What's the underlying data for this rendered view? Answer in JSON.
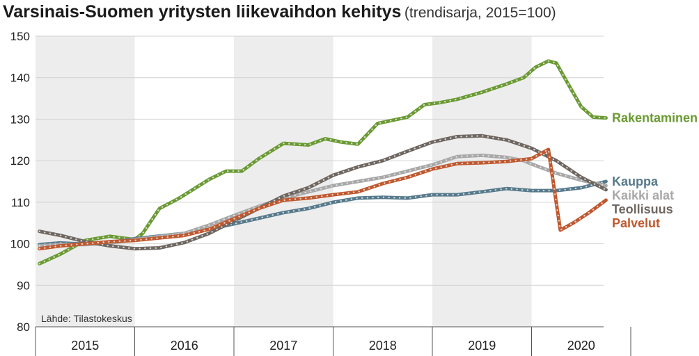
{
  "title": "Varsinais-Suomen yritysten liikevaihdon kehitys",
  "subtitle": "(trendisarja, 2015=100)",
  "source": "Lähde: Tilastokeskus",
  "chart_data": {
    "type": "line",
    "ylim": [
      80,
      150
    ],
    "yticks": [
      80,
      90,
      100,
      110,
      120,
      130,
      140,
      150
    ],
    "xlim": [
      2015.0,
      2020.9
    ],
    "x_axis_labels": [
      "2015",
      "2016",
      "2017",
      "2018",
      "2019",
      "2020"
    ],
    "shaded_years": [
      "2015",
      "2017",
      "2019"
    ],
    "grid": "horizontal",
    "legend": "series labels at the right end of each line",
    "series": [
      {
        "name": "Rakentaminen",
        "color": "#6a9a32",
        "points": [
          [
            2015.04,
            95.2
          ],
          [
            2015.25,
            97.5
          ],
          [
            2015.5,
            100.8
          ],
          [
            2015.75,
            101.8
          ],
          [
            2016.0,
            101.0
          ],
          [
            2016.08,
            102.5
          ],
          [
            2016.25,
            108.5
          ],
          [
            2016.45,
            111.0
          ],
          [
            2016.75,
            115.5
          ],
          [
            2016.92,
            117.5
          ],
          [
            2017.08,
            117.5
          ],
          [
            2017.25,
            120.5
          ],
          [
            2017.5,
            124.2
          ],
          [
            2017.75,
            123.8
          ],
          [
            2017.92,
            125.3
          ],
          [
            2018.08,
            124.5
          ],
          [
            2018.25,
            124.0
          ],
          [
            2018.45,
            129.0
          ],
          [
            2018.75,
            130.5
          ],
          [
            2018.92,
            133.5
          ],
          [
            2019.08,
            134.0
          ],
          [
            2019.25,
            134.8
          ],
          [
            2019.5,
            136.5
          ],
          [
            2019.75,
            138.5
          ],
          [
            2019.92,
            140.0
          ],
          [
            2020.04,
            142.5
          ],
          [
            2020.17,
            144.0
          ],
          [
            2020.25,
            143.5
          ],
          [
            2020.38,
            138.0
          ],
          [
            2020.5,
            133.0
          ],
          [
            2020.62,
            130.5
          ],
          [
            2020.75,
            130.3
          ]
        ]
      },
      {
        "name": "Kauppa",
        "color": "#567a8c",
        "points": [
          [
            2015.04,
            99.8
          ],
          [
            2015.25,
            100.2
          ],
          [
            2015.5,
            99.9
          ],
          [
            2015.75,
            100.3
          ],
          [
            2016.0,
            101.2
          ],
          [
            2016.5,
            102.5
          ],
          [
            2016.75,
            103.5
          ],
          [
            2017.0,
            104.8
          ],
          [
            2017.5,
            107.5
          ],
          [
            2017.75,
            108.5
          ],
          [
            2018.0,
            110.0
          ],
          [
            2018.25,
            111.0
          ],
          [
            2018.5,
            111.2
          ],
          [
            2018.75,
            111.0
          ],
          [
            2019.0,
            111.8
          ],
          [
            2019.25,
            111.8
          ],
          [
            2019.5,
            112.5
          ],
          [
            2019.75,
            113.3
          ],
          [
            2020.0,
            112.8
          ],
          [
            2020.25,
            112.8
          ],
          [
            2020.5,
            113.5
          ],
          [
            2020.75,
            115.0
          ]
        ]
      },
      {
        "name": "Kaikki alat",
        "color": "#a8a8a8",
        "points": [
          [
            2015.04,
            99.5
          ],
          [
            2015.25,
            99.8
          ],
          [
            2015.5,
            99.8
          ],
          [
            2015.75,
            100.2
          ],
          [
            2016.0,
            101.0
          ],
          [
            2016.5,
            102.5
          ],
          [
            2016.75,
            104.5
          ],
          [
            2017.0,
            106.8
          ],
          [
            2017.25,
            109.0
          ],
          [
            2017.5,
            111.0
          ],
          [
            2017.75,
            112.5
          ],
          [
            2018.0,
            114.0
          ],
          [
            2018.25,
            115.0
          ],
          [
            2018.5,
            116.0
          ],
          [
            2018.75,
            117.5
          ],
          [
            2019.0,
            119.0
          ],
          [
            2019.25,
            121.0
          ],
          [
            2019.5,
            121.3
          ],
          [
            2019.75,
            120.8
          ],
          [
            2019.92,
            120.0
          ],
          [
            2020.0,
            119.2
          ],
          [
            2020.25,
            117.0
          ],
          [
            2020.5,
            115.3
          ],
          [
            2020.75,
            114.0
          ]
        ]
      },
      {
        "name": "Teollisuus",
        "color": "#6e6660",
        "points": [
          [
            2015.04,
            103.0
          ],
          [
            2015.25,
            102.0
          ],
          [
            2015.5,
            100.5
          ],
          [
            2015.75,
            99.5
          ],
          [
            2016.0,
            98.8
          ],
          [
            2016.25,
            99.0
          ],
          [
            2016.5,
            100.3
          ],
          [
            2016.75,
            102.5
          ],
          [
            2017.0,
            105.5
          ],
          [
            2017.25,
            108.5
          ],
          [
            2017.5,
            111.5
          ],
          [
            2017.75,
            113.5
          ],
          [
            2018.0,
            116.5
          ],
          [
            2018.25,
            118.5
          ],
          [
            2018.5,
            120.0
          ],
          [
            2018.75,
            122.3
          ],
          [
            2019.0,
            124.5
          ],
          [
            2019.25,
            125.8
          ],
          [
            2019.5,
            126.0
          ],
          [
            2019.75,
            125.0
          ],
          [
            2020.0,
            123.0
          ],
          [
            2020.25,
            120.0
          ],
          [
            2020.5,
            116.0
          ],
          [
            2020.75,
            113.0
          ]
        ]
      },
      {
        "name": "Palvelut",
        "color": "#c0582e",
        "points": [
          [
            2015.04,
            98.8
          ],
          [
            2015.25,
            99.5
          ],
          [
            2015.5,
            100.0
          ],
          [
            2015.75,
            100.5
          ],
          [
            2016.0,
            100.8
          ],
          [
            2016.5,
            102.0
          ],
          [
            2016.75,
            103.5
          ],
          [
            2017.0,
            106.0
          ],
          [
            2017.25,
            108.5
          ],
          [
            2017.5,
            110.5
          ],
          [
            2017.75,
            111.0
          ],
          [
            2018.0,
            111.8
          ],
          [
            2018.25,
            112.5
          ],
          [
            2018.5,
            114.5
          ],
          [
            2018.75,
            116.0
          ],
          [
            2019.0,
            118.0
          ],
          [
            2019.25,
            119.3
          ],
          [
            2019.5,
            119.5
          ],
          [
            2019.75,
            119.8
          ],
          [
            2020.0,
            120.5
          ],
          [
            2020.17,
            122.7
          ],
          [
            2020.29,
            103.3
          ],
          [
            2020.42,
            105.0
          ],
          [
            2020.58,
            107.5
          ],
          [
            2020.75,
            110.5
          ]
        ]
      }
    ]
  }
}
